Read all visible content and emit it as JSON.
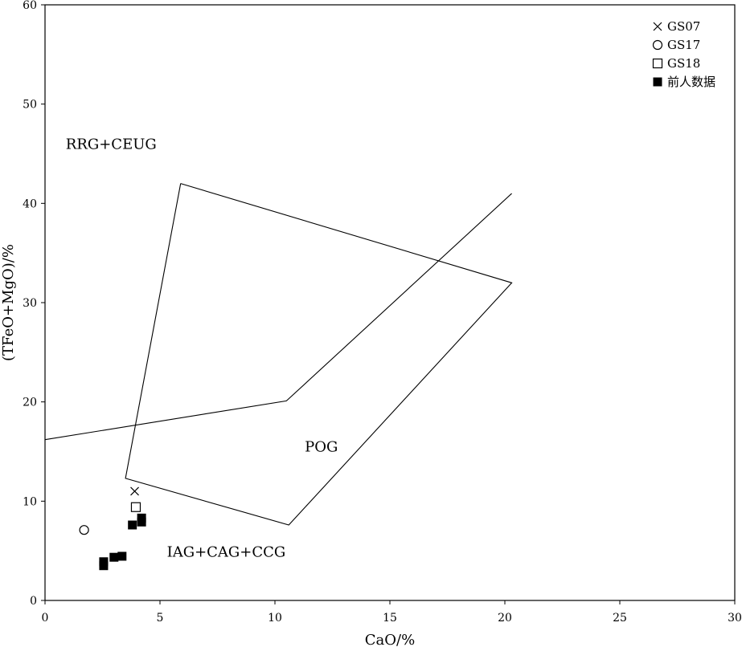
{
  "chart_data": {
    "type": "scatter",
    "title": "",
    "xlabel": "CaO/%",
    "ylabel": "(TFeO+MgO)/%",
    "xlim": [
      0,
      30
    ],
    "ylim": [
      0,
      60
    ],
    "xticks": [
      0,
      5,
      10,
      15,
      20,
      25,
      30
    ],
    "yticks": [
      0,
      10,
      20,
      30,
      40,
      50,
      60
    ],
    "grid": false,
    "legend_position": "top-right",
    "series": [
      {
        "name": "GS07",
        "marker": "x",
        "points": [
          [
            3.9,
            11.0
          ]
        ]
      },
      {
        "name": "GS17",
        "marker": "circle-open",
        "points": [
          [
            1.7,
            7.1
          ]
        ]
      },
      {
        "name": "GS18",
        "marker": "square-open",
        "points": [
          [
            3.95,
            9.4
          ]
        ]
      },
      {
        "name": "前人数据",
        "marker": "square-filled",
        "points": [
          [
            2.55,
            3.5
          ],
          [
            2.55,
            3.9
          ],
          [
            3.0,
            4.35
          ],
          [
            3.35,
            4.45
          ],
          [
            3.8,
            7.6
          ],
          [
            4.2,
            7.9
          ],
          [
            4.2,
            8.3
          ]
        ]
      }
    ],
    "boundaries": [
      {
        "points": [
          [
            0,
            16.2
          ],
          [
            10.5,
            20.1
          ],
          [
            20.3,
            41.0
          ]
        ]
      },
      {
        "points": [
          [
            5.9,
            42.0
          ],
          [
            20.3,
            32.0
          ],
          [
            10.6,
            7.6
          ],
          [
            3.5,
            12.3
          ],
          [
            5.9,
            42.0
          ]
        ]
      }
    ],
    "annotations": [
      {
        "text": "RRG+CEUG",
        "x": 0.9,
        "y": 45.5
      },
      {
        "text": "POG",
        "x": 11.3,
        "y": 15.0
      },
      {
        "text": "IAG+CAG+CCG",
        "x": 5.3,
        "y": 4.4
      }
    ]
  }
}
